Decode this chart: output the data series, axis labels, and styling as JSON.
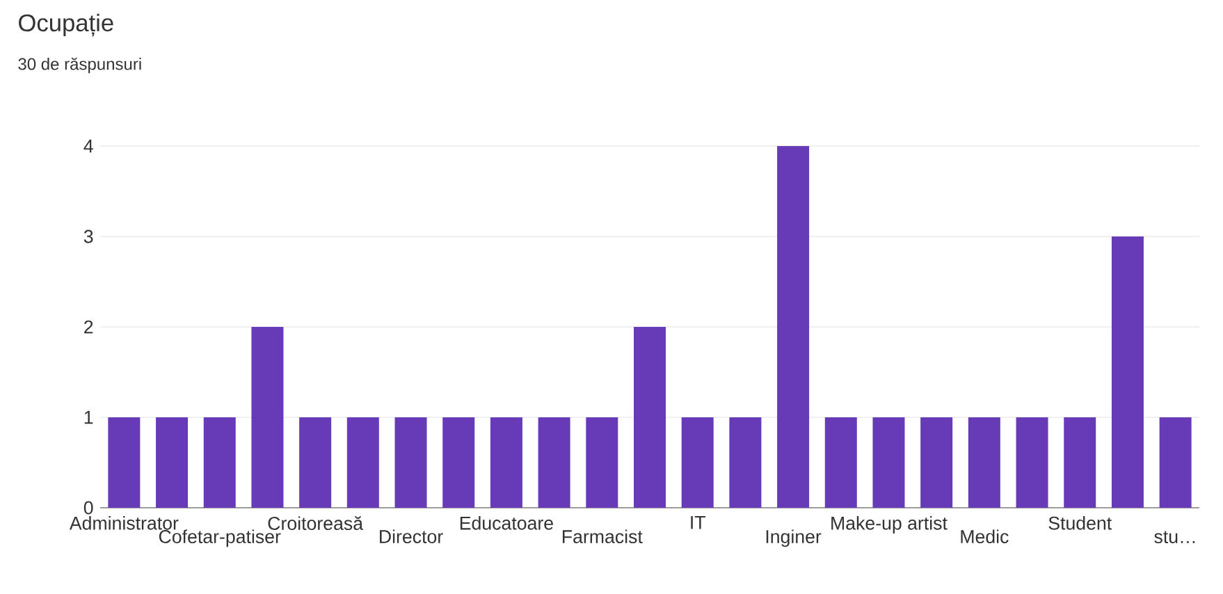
{
  "chart_data": {
    "type": "bar",
    "title": "Ocupație",
    "subtitle": "30 de răspunsuri",
    "categories": [
      "Administrator",
      null,
      "Cofetar-patiser",
      null,
      "Croitoreasă",
      null,
      "Director",
      null,
      "Educatoare",
      null,
      "Farmacist",
      null,
      "IT",
      null,
      "Inginer",
      null,
      "Make-up artist",
      null,
      "Medic",
      null,
      "Student",
      null,
      "stu…"
    ],
    "values": [
      1,
      1,
      1,
      2,
      1,
      1,
      1,
      1,
      1,
      1,
      1,
      2,
      1,
      1,
      4,
      1,
      1,
      1,
      1,
      1,
      1,
      3,
      1
    ],
    "color": "#673ab7",
    "ylim": [
      0,
      4
    ],
    "yticks": [
      0,
      1,
      2,
      3,
      4
    ],
    "grid": "y"
  }
}
